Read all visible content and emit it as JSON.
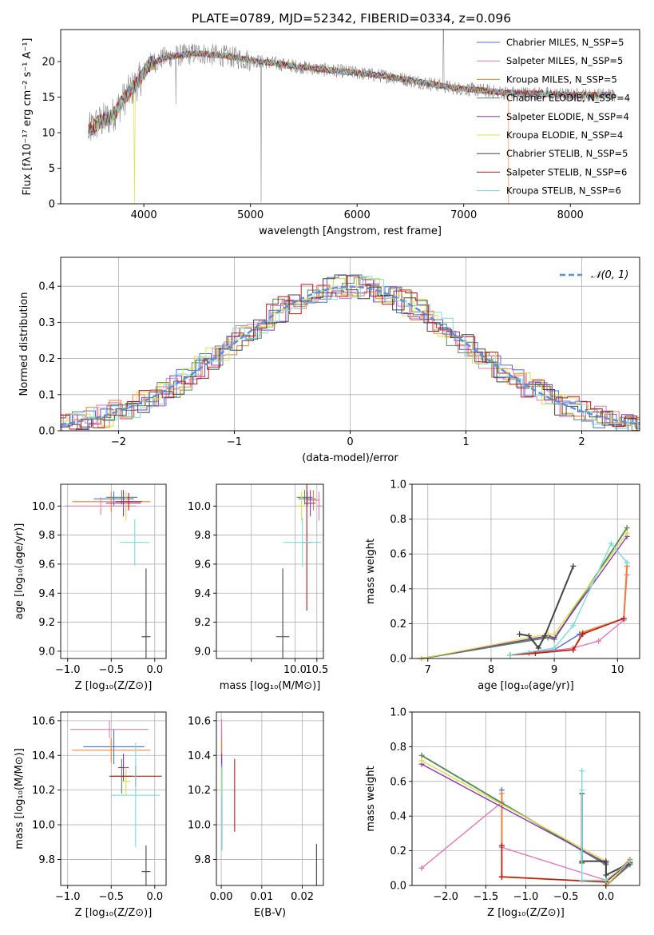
{
  "chart_data": [
    {
      "id": "spectrum",
      "type": "line",
      "title": "PLATE=0789, MJD=52342, FIBERID=0334, z=0.096",
      "xlabel": "wavelength [Angstrom, rest frame]",
      "ylabel": "Flux [fλ10⁻¹⁷ erg cm⁻² s⁻¹ A⁻¹]",
      "xlim": [
        3220,
        8650
      ],
      "ylim": [
        0,
        24.5
      ],
      "xticks": [
        4000,
        5000,
        6000,
        7000,
        8000
      ],
      "yticks": [
        0,
        5,
        10,
        15,
        20
      ],
      "legend_position": "top-right",
      "continuum": {
        "x": [
          3480,
          3550,
          3700,
          3850,
          3950,
          4050,
          4200,
          4500,
          4800,
          5000,
          5300,
          5600,
          6000,
          6300,
          6600,
          6900,
          7200,
          7400,
          7700,
          8000,
          8400
        ],
        "y": [
          10.2,
          11.2,
          12.3,
          15.5,
          17.2,
          19.6,
          20.6,
          21.2,
          20.7,
          20.2,
          19.6,
          19.0,
          18.4,
          17.9,
          17.1,
          16.3,
          15.9,
          15.6,
          15.5,
          15.3,
          15.3
        ]
      },
      "series": [
        {
          "name": "Chabrier MILES, Nₛₛₚ=5",
          "legend": "Chabrier MILES, N_SSP=5",
          "color": "#4f6fd8"
        },
        {
          "name": "Salpeter MILES, N_SSP=5",
          "legend": "Salpeter MILES, N_SSP=5",
          "color": "#e57ab5"
        },
        {
          "name": "Kroupa MILES, N_SSP=5",
          "legend": "Kroupa MILES, N_SSP=5",
          "color": "#ef7f3a"
        },
        {
          "name": "Chabrier ELODIE, N_SSP=4",
          "legend": "Chabrier ELODIE, N_SSP=4",
          "color": "#5a8a5a"
        },
        {
          "name": "Salpeter ELODIE, N_SSP=4",
          "legend": "Salpeter ELODIE, N_SSP=4",
          "color": "#8e35b3"
        },
        {
          "name": "Kroupa ELODIE, N_SSP=4",
          "legend": "Kroupa ELODIE, N_SSP=4",
          "color": "#d7e04d"
        },
        {
          "name": "Chabrier STELIB, N_SSP=5",
          "legend": "Chabrier STELIB, N_SSP=5",
          "color": "#444444"
        },
        {
          "name": "Salpeter STELIB, N_SSP=6",
          "legend": "Salpeter STELIB, N_SSP=6",
          "color": "#b5191c"
        },
        {
          "name": "Kroupa STELIB, N_SSP=6",
          "legend": "Kroupa STELIB, N_SSP=6",
          "color": "#7fdada"
        }
      ]
    },
    {
      "id": "residuals",
      "type": "line",
      "xlabel": "(data-model)/error",
      "ylabel": "Normed distribution",
      "xlim": [
        -2.5,
        2.5
      ],
      "ylim": [
        0,
        0.48
      ],
      "xticks": [
        -2,
        -1,
        0,
        1,
        2
      ],
      "yticks": [
        0.0,
        0.1,
        0.2,
        0.3,
        0.4
      ],
      "legend": "𝒩(0, 1)",
      "legend_position": "top-right",
      "reference": {
        "name": "𝒩(0, 1)",
        "style": "dashed",
        "color": "#5b8fd9",
        "mu": 0,
        "sigma": 1
      }
    },
    {
      "id": "z-age",
      "type": "scatter",
      "xlabel": "Z [log₁₀(Z/Z⊙)]",
      "ylabel": "age  [log₁₀(age/yr)]",
      "xlim": [
        -1.08,
        0.13
      ],
      "ylim": [
        8.95,
        10.15
      ],
      "xticks": [
        -1.0,
        -0.5,
        0.0
      ],
      "yticks": [
        9.0,
        9.2,
        9.4,
        9.6,
        9.8,
        10.0
      ],
      "points": [
        {
          "x": -0.47,
          "y": 10.05,
          "xerr": 0.23,
          "yerr": 0.05,
          "color": "#4f6fd8"
        },
        {
          "x": -0.5,
          "y": 10.03,
          "xerr": 0.45,
          "yerr": 0.07,
          "color": "#ef7f3a"
        },
        {
          "x": -0.38,
          "y": 10.06,
          "xerr": 0.18,
          "yerr": 0.05,
          "color": "#5a8a5a"
        },
        {
          "x": -0.36,
          "y": 10.02,
          "xerr": 0.2,
          "yerr": 0.09,
          "color": "#8e35b3"
        },
        {
          "x": -0.33,
          "y": 10.0,
          "xerr": 0.12,
          "yerr": 0.1,
          "color": "#d7e04d"
        },
        {
          "x": -0.62,
          "y": 10.0,
          "xerr": 0.41,
          "yerr": 0.06,
          "color": "#e57ab5"
        },
        {
          "x": -0.3,
          "y": 10.03,
          "xerr": 0.15,
          "yerr": 0.06,
          "color": "#b5191c"
        },
        {
          "x": -0.23,
          "y": 9.75,
          "xerr": 0.17,
          "yerr": 0.16,
          "color": "#7fdada"
        },
        {
          "x": -0.1,
          "y": 9.1,
          "xerr": 0.05,
          "yerr": 0.47,
          "color": "#444444"
        }
      ]
    },
    {
      "id": "mass-age",
      "type": "scatter",
      "xlabel": "mass [log₁₀(M/M⊙)]",
      "ylabel": "",
      "xlim": [
        8.2,
        10.65
      ],
      "ylim": [
        8.95,
        10.15
      ],
      "xticks": [
        9.0,
        10.0,
        10.5
      ],
      "xtick_labels": [
        "",
        "10.0",
        "10.5"
      ],
      "yticks": [
        9.0,
        9.2,
        9.4,
        9.6,
        9.8,
        10.0
      ],
      "points": [
        {
          "x": 10.28,
          "y": 10.05,
          "xerr": 0.2,
          "yerr": 0.05,
          "color": "#4f6fd8"
        },
        {
          "x": 10.42,
          "y": 10.04,
          "xerr": 0.15,
          "yerr": 0.07,
          "color": "#ef7f3a"
        },
        {
          "x": 10.22,
          "y": 10.06,
          "xerr": 0.18,
          "yerr": 0.05,
          "color": "#5a8a5a"
        },
        {
          "x": 10.35,
          "y": 10.02,
          "xerr": 0.12,
          "yerr": 0.09,
          "color": "#8e35b3"
        },
        {
          "x": 10.15,
          "y": 10.0,
          "xerr": 0.1,
          "yerr": 0.1,
          "color": "#d7e04d"
        },
        {
          "x": 10.55,
          "y": 10.0,
          "xerr": 0.06,
          "yerr": 0.1,
          "color": "#e57ab5"
        },
        {
          "x": 10.27,
          "y": 9.75,
          "xerr": 0.12,
          "yerr": 0.47,
          "color": "#b5191c"
        },
        {
          "x": 10.17,
          "y": 9.75,
          "xerr": 0.43,
          "yerr": 0.17,
          "color": "#7fdada"
        },
        {
          "x": 9.72,
          "y": 9.1,
          "xerr": 0.15,
          "yerr": 0.47,
          "color": "#444444"
        }
      ]
    },
    {
      "id": "age-weight",
      "type": "line",
      "xlabel": "age  [log₁₀(age/yr)]",
      "ylabel": "mass weight",
      "xlim": [
        6.75,
        10.35
      ],
      "ylim": [
        0,
        1.0
      ],
      "xticks": [
        7,
        8,
        9,
        10
      ],
      "yticks": [
        0.0,
        0.2,
        0.4,
        0.6,
        0.8,
        1.0
      ],
      "series": [
        {
          "color": "#4f6fd8",
          "x": [
            8.3,
            9.0,
            9.4,
            10.1,
            10.15
          ],
          "y": [
            0.02,
            0.05,
            0.14,
            0.23,
            0.55
          ]
        },
        {
          "color": "#e57ab5",
          "x": [
            8.6,
            9.3,
            9.7,
            10.1,
            10.15
          ],
          "y": [
            0.03,
            0.06,
            0.1,
            0.22,
            0.48
          ]
        },
        {
          "color": "#ef7f3a",
          "x": [
            8.3,
            9.3,
            9.45,
            10.1,
            10.15
          ],
          "y": [
            0.02,
            0.05,
            0.15,
            0.23,
            0.53
          ]
        },
        {
          "color": "#5a8a5a",
          "x": [
            6.9,
            8.9,
            9.0,
            10.15
          ],
          "y": [
            0.0,
            0.12,
            0.11,
            0.75
          ]
        },
        {
          "color": "#8e35b3",
          "x": [
            6.9,
            8.9,
            9.0,
            10.15
          ],
          "y": [
            0.0,
            0.13,
            0.12,
            0.7
          ]
        },
        {
          "color": "#d7e04d",
          "x": [
            6.9,
            8.9,
            9.0,
            10.15
          ],
          "y": [
            0.0,
            0.14,
            0.14,
            0.72
          ]
        },
        {
          "color": "#444444",
          "x": [
            8.45,
            8.6,
            8.75,
            8.85,
            9.3
          ],
          "y": [
            0.14,
            0.13,
            0.06,
            0.13,
            0.53
          ]
        },
        {
          "color": "#b5191c",
          "x": [
            8.3,
            8.7,
            9.3,
            9.45,
            10.1
          ],
          "y": [
            0.02,
            0.03,
            0.05,
            0.14,
            0.23
          ]
        },
        {
          "color": "#7fdada",
          "x": [
            8.3,
            9.0,
            9.3,
            9.9,
            10.15
          ],
          "y": [
            0.02,
            0.06,
            0.19,
            0.66,
            0.55
          ]
        }
      ]
    },
    {
      "id": "z-mass",
      "type": "scatter",
      "xlabel": "Z [log₁₀(Z/Z⊙)]",
      "ylabel": "mass [log₁₀(M/M⊙)]",
      "xlim": [
        -1.08,
        0.13
      ],
      "ylim": [
        9.65,
        10.65
      ],
      "xticks": [
        -1.0,
        -0.5,
        0.0
      ],
      "yticks": [
        9.8,
        10.0,
        10.2,
        10.4,
        10.6
      ],
      "points": [
        {
          "x": -0.47,
          "y": 10.45,
          "xerr": 0.35,
          "yerr": 0.1,
          "color": "#4f6fd8"
        },
        {
          "x": -0.5,
          "y": 10.43,
          "xerr": 0.45,
          "yerr": 0.07,
          "color": "#ef7f3a"
        },
        {
          "x": -0.52,
          "y": 10.55,
          "xerr": 0.45,
          "yerr": 0.05,
          "color": "#e57ab5"
        },
        {
          "x": -0.38,
          "y": 10.28,
          "xerr": 0.12,
          "yerr": 0.1,
          "color": "#5a8a5a"
        },
        {
          "x": -0.36,
          "y": 10.33,
          "xerr": 0.06,
          "yerr": 0.08,
          "color": "#8e35b3"
        },
        {
          "x": -0.33,
          "y": 10.25,
          "xerr": 0.05,
          "yerr": 0.08,
          "color": "#d7e04d"
        },
        {
          "x": -0.22,
          "y": 10.28,
          "xerr": 0.3,
          "yerr": 0.06,
          "color": "#b5191c"
        },
        {
          "x": -0.22,
          "y": 10.17,
          "xerr": 0.28,
          "yerr": 0.3,
          "color": "#7fdada"
        },
        {
          "x": -0.1,
          "y": 9.73,
          "xerr": 0.05,
          "yerr": 0.15,
          "color": "#444444"
        }
      ]
    },
    {
      "id": "ebv-mass",
      "type": "scatter",
      "xlabel": "E(B-V)",
      "ylabel": "",
      "xlim": [
        -0.0012,
        0.0252
      ],
      "ylim": [
        9.65,
        10.65
      ],
      "xticks": [
        0.0,
        0.01,
        0.02
      ],
      "yticks": [
        9.8,
        10.0,
        10.2,
        10.4,
        10.6
      ],
      "points": [
        {
          "x": 0.0001,
          "y": 10.45,
          "yerr": 0.1,
          "color": "#4f6fd8"
        },
        {
          "x": 0.0001,
          "y": 10.43,
          "yerr": 0.07,
          "color": "#ef7f3a"
        },
        {
          "x": 0.0001,
          "y": 10.55,
          "yerr": 0.06,
          "color": "#e57ab5"
        },
        {
          "x": 0.0001,
          "y": 10.28,
          "yerr": 0.1,
          "color": "#5a8a5a"
        },
        {
          "x": 0.0001,
          "y": 10.33,
          "yerr": 0.08,
          "color": "#8e35b3"
        },
        {
          "x": 0.0001,
          "y": 10.25,
          "yerr": 0.08,
          "color": "#d7e04d"
        },
        {
          "x": 0.0033,
          "y": 10.17,
          "yerr": 0.21,
          "color": "#b5191c"
        },
        {
          "x": 0.0002,
          "y": 10.1,
          "yerr": 0.25,
          "color": "#7fdada"
        },
        {
          "x": 0.0235,
          "y": 9.73,
          "yerr": 0.16,
          "color": "#444444"
        }
      ]
    },
    {
      "id": "z-weight",
      "type": "line",
      "xlabel": "Z [log₁₀(Z/Z⊙)]",
      "ylabel": "mass weight",
      "xlim": [
        -2.42,
        0.42
      ],
      "ylim": [
        0,
        1.0
      ],
      "xticks": [
        -2.0,
        -1.5,
        -1.0,
        -0.5,
        0.0
      ],
      "yticks": [
        0.0,
        0.2,
        0.4,
        0.6,
        0.8,
        1.0
      ],
      "series": [
        {
          "color": "#4f6fd8",
          "x": [
            -1.3,
            -1.3,
            -1.3,
            0.0,
            0.3
          ],
          "y": [
            0.55,
            0.23,
            0.05,
            0.02,
            0.14
          ]
        },
        {
          "color": "#e57ab5",
          "x": [
            -2.3,
            -1.3,
            -1.3,
            0.0,
            0.3
          ],
          "y": [
            0.1,
            0.48,
            0.22,
            0.03,
            0.13
          ]
        },
        {
          "color": "#ef7f3a",
          "x": [
            -1.3,
            -1.3,
            -1.3,
            0.0,
            0.3
          ],
          "y": [
            0.53,
            0.23,
            0.05,
            0.02,
            0.15
          ]
        },
        {
          "color": "#5a8a5a",
          "x": [
            -2.3,
            0.0,
            0.0,
            0.3
          ],
          "y": [
            0.75,
            0.12,
            0.0,
            0.12
          ]
        },
        {
          "color": "#8e35b3",
          "x": [
            -2.3,
            0.0,
            0.0,
            0.3
          ],
          "y": [
            0.7,
            0.13,
            0.0,
            0.13
          ]
        },
        {
          "color": "#d7e04d",
          "x": [
            -2.3,
            0.0,
            0.0,
            0.3
          ],
          "y": [
            0.72,
            0.14,
            0.0,
            0.14
          ]
        },
        {
          "color": "#444444",
          "x": [
            -0.3,
            -0.3,
            -0.3,
            0.0,
            0.0,
            0.3
          ],
          "y": [
            0.53,
            0.13,
            0.14,
            0.14,
            0.06,
            0.13
          ]
        },
        {
          "color": "#b5191c",
          "x": [
            -1.3,
            -1.3,
            -1.3,
            0.0,
            0.3
          ],
          "y": [
            0.23,
            0.05,
            0.05,
            0.02,
            0.14
          ]
        },
        {
          "color": "#7fdada",
          "x": [
            -0.3,
            -0.3,
            -0.3,
            -0.3,
            0.0,
            0.3
          ],
          "y": [
            0.66,
            0.55,
            0.19,
            0.03,
            0.03,
            0.14
          ]
        }
      ]
    }
  ]
}
